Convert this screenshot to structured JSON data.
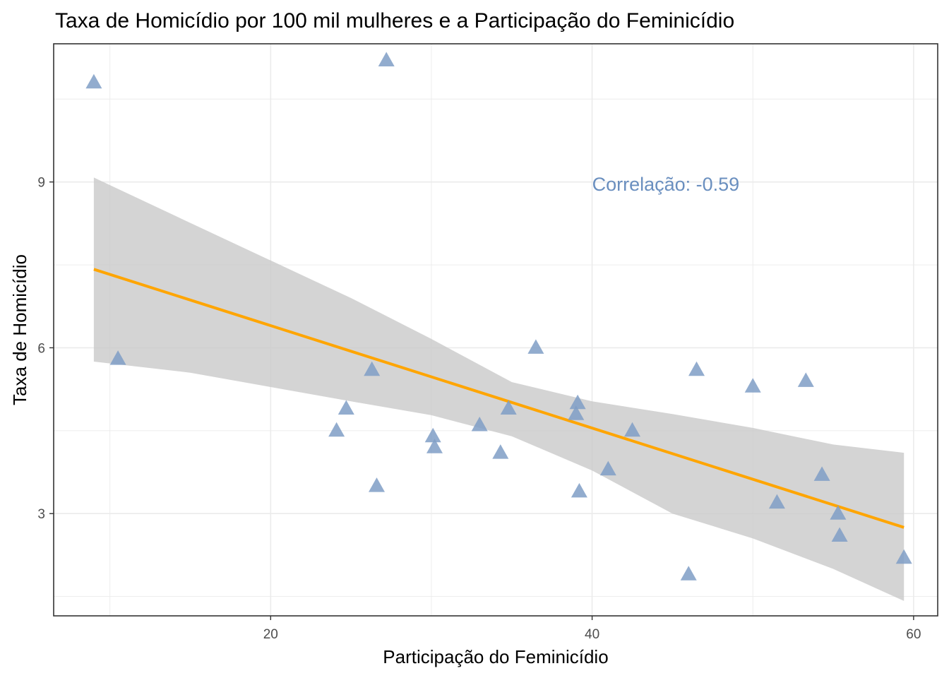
{
  "chart_data": {
    "type": "scatter",
    "title": "Taxa de Homicídio por 100 mil mulheres e a Participação do Feminicídio",
    "xlabel": "Participação do Feminicídio",
    "ylabel": "Taxa de Homicídio",
    "xlim": [
      6.5,
      61.5
    ],
    "ylim": [
      1.15,
      11.5
    ],
    "x_ticks": [
      20,
      40,
      60
    ],
    "x_tick_labels": [
      "20",
      "40",
      "60"
    ],
    "y_ticks": [
      3,
      6,
      9
    ],
    "y_tick_labels": [
      "3",
      "6",
      "9"
    ],
    "grid": true,
    "points": [
      {
        "x": 9.0,
        "y": 10.8
      },
      {
        "x": 10.5,
        "y": 5.8
      },
      {
        "x": 27.2,
        "y": 11.2
      },
      {
        "x": 24.1,
        "y": 4.5
      },
      {
        "x": 24.7,
        "y": 4.9
      },
      {
        "x": 26.3,
        "y": 5.6
      },
      {
        "x": 26.6,
        "y": 3.5
      },
      {
        "x": 30.1,
        "y": 4.4
      },
      {
        "x": 30.2,
        "y": 4.2
      },
      {
        "x": 33.0,
        "y": 4.6
      },
      {
        "x": 34.3,
        "y": 4.1
      },
      {
        "x": 34.8,
        "y": 4.9
      },
      {
        "x": 36.5,
        "y": 6.0
      },
      {
        "x": 39.0,
        "y": 4.8
      },
      {
        "x": 39.1,
        "y": 5.0
      },
      {
        "x": 39.2,
        "y": 3.4
      },
      {
        "x": 41.0,
        "y": 3.8
      },
      {
        "x": 42.5,
        "y": 4.5
      },
      {
        "x": 46.0,
        "y": 1.9
      },
      {
        "x": 46.5,
        "y": 5.6
      },
      {
        "x": 50.0,
        "y": 5.3
      },
      {
        "x": 51.5,
        "y": 3.2
      },
      {
        "x": 53.3,
        "y": 5.4
      },
      {
        "x": 54.3,
        "y": 3.7
      },
      {
        "x": 55.3,
        "y": 3.0
      },
      {
        "x": 55.4,
        "y": 2.6
      },
      {
        "x": 59.4,
        "y": 2.2
      }
    ],
    "trend_line": {
      "method": "linear",
      "x": [
        9.0,
        59.4
      ],
      "y": [
        7.42,
        2.75
      ]
    },
    "confidence_band": [
      {
        "x": 9.0,
        "low": 5.75,
        "high": 9.08
      },
      {
        "x": 15.0,
        "low": 5.55,
        "high": 8.26
      },
      {
        "x": 20.0,
        "low": 5.29,
        "high": 7.58
      },
      {
        "x": 25.0,
        "low": 5.03,
        "high": 6.9
      },
      {
        "x": 30.0,
        "low": 4.78,
        "high": 6.16
      },
      {
        "x": 35.0,
        "low": 4.4,
        "high": 5.38
      },
      {
        "x": 40.0,
        "low": 3.78,
        "high": 5.03
      },
      {
        "x": 45.0,
        "low": 3.0,
        "high": 4.8
      },
      {
        "x": 50.0,
        "low": 2.55,
        "high": 4.55
      },
      {
        "x": 55.0,
        "low": 2.0,
        "high": 4.25
      },
      {
        "x": 59.4,
        "low": 1.42,
        "high": 4.1
      }
    ],
    "annotation": {
      "text": "Correlação:  -0.59",
      "x": 40.0,
      "y": 8.97
    },
    "colors": {
      "points": "#7f9dc6",
      "trend_line": "#ffa500",
      "confidence_band": "#c8c8c8",
      "annotation": "#6a8fbf",
      "grid": "#ebebeb",
      "panel_border": "#333333"
    }
  }
}
